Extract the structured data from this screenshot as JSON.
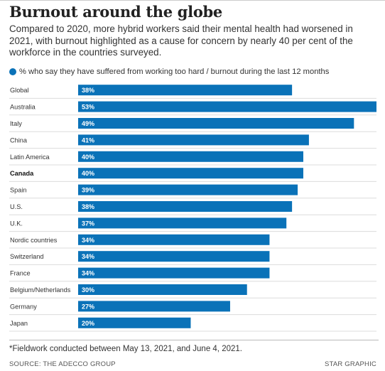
{
  "title": "Burnout around the globe",
  "subtitle": "Compared to 2020, more hybrid workers said their mental health had worsened in 2021, with burnout highlighted as a cause for concern by nearly 40 per cent of the workforce in the countries surveyed.",
  "legend_label": "% who say they have suffered from working too hard / burnout during the last 12 months",
  "footnote": "*Fieldwork conducted between May 13, 2021, and June 4, 2021.",
  "source": "SOURCE: THE ADECCO GROUP",
  "credit": "STAR GRAPHIC",
  "colors": {
    "bar": "#0a72b8",
    "bar_label": "#ffffff",
    "row_line": "#dcdcdc"
  },
  "chart_data": {
    "type": "bar",
    "orientation": "horizontal",
    "categories": [
      "Global",
      "Australia",
      "Italy",
      "China",
      "Latin America",
      "Canada",
      "Spain",
      "U.S.",
      "U.K.",
      "Nordic countries",
      "Switzerland",
      "France",
      "Belgium/Netherlands",
      "Germany",
      "Japan"
    ],
    "values": [
      38,
      53,
      49,
      41,
      40,
      40,
      39,
      38,
      37,
      34,
      34,
      34,
      30,
      27,
      20
    ],
    "value_labels": [
      "38%",
      "53%",
      "49%",
      "41%",
      "40%",
      "40%",
      "39%",
      "38%",
      "37%",
      "34%",
      "34%",
      "34%",
      "30%",
      "27%",
      "20%"
    ],
    "highlighted": [
      "Canada"
    ],
    "xlim": [
      0,
      53
    ],
    "grid": false
  }
}
